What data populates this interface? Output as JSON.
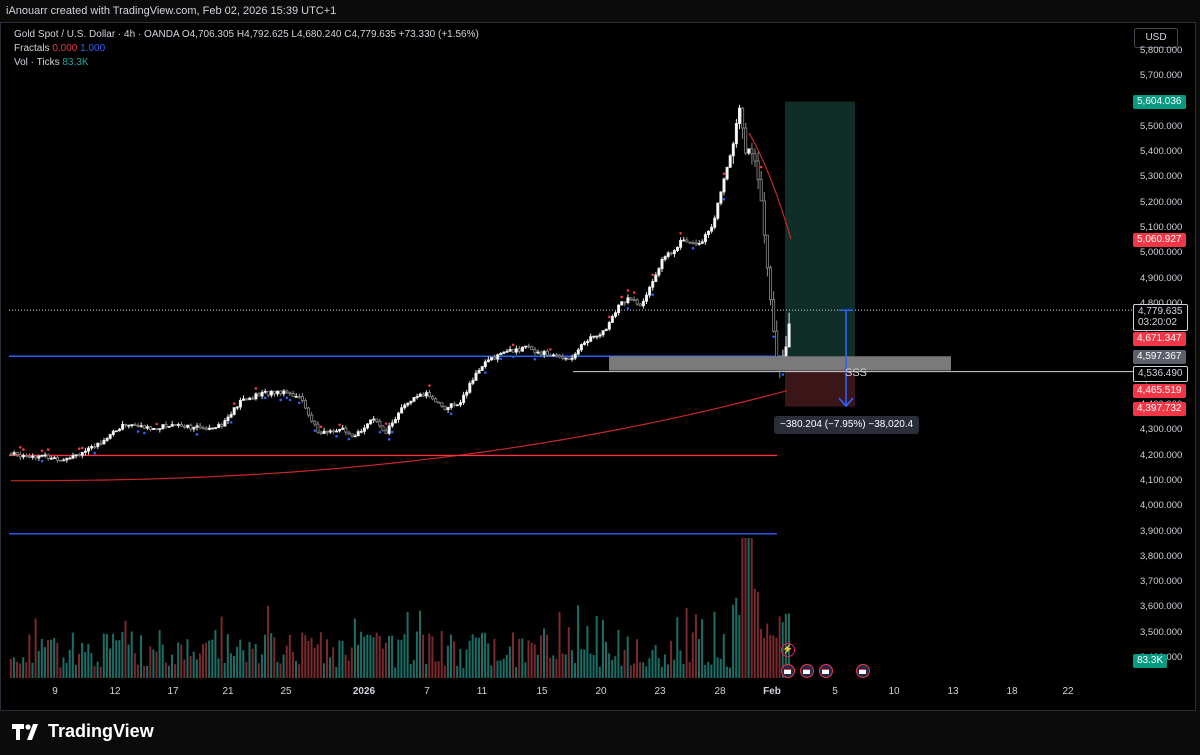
{
  "header": {
    "credit": "iAnouarr created with TradingView.com, Feb 02, 2026 15:39 UTC+1"
  },
  "legend": {
    "symbol": "Gold Spot / U.S. Dollar · 4h · OANDA",
    "open_label": "O",
    "open": "4,706.305",
    "high_label": "H",
    "high": "4,792.625",
    "low_label": "L",
    "low": "4,680.240",
    "close_label": "C",
    "close": "4,779.635",
    "change": "+73.330 (+1.56%)",
    "fractals_label": "Fractals",
    "fractals_a": "0.000",
    "fractals_b": "1.000",
    "vol_label": "Vol · Ticks",
    "vol_value": "83.3K"
  },
  "currency": "USD",
  "price_axis": [
    "5,800.000",
    "5,700.000",
    "5,600.000",
    "5,500.000",
    "5,400.000",
    "5,300.000",
    "5,200.000",
    "5,100.000",
    "5,000.000",
    "4,900.000",
    "4,800.000",
    "4,700.000",
    "4,600.000",
    "4,500.000",
    "4,400.000",
    "4,300.000",
    "4,200.000",
    "4,100.000",
    "4,000.000",
    "3,900.000",
    "3,800.000",
    "3,700.000",
    "3,600.000",
    "3,500.000",
    "3,400.000"
  ],
  "price_labels": {
    "target": "5,604.036",
    "ma_fast": "5,060.927",
    "current": "4,779.635",
    "countdown": "03:20:02",
    "level_a": "4,671.347",
    "level_b": "4,597.367",
    "level_c": "4,536.490",
    "level_d": "4,465.519",
    "level_e": "4,397.732",
    "volume": "83.3K"
  },
  "time_axis": [
    "9",
    "12",
    "17",
    "21",
    "25",
    "2026",
    "7",
    "11",
    "15",
    "20",
    "23",
    "28",
    "Feb",
    "5",
    "10",
    "13",
    "18",
    "22"
  ],
  "measure_text": "−380.204 (−7.95%) −38,020.4",
  "sss_label": "SSS",
  "footer": {
    "brand": "TradingView"
  },
  "colors": {
    "up": "#26a69a",
    "down": "#ef5350",
    "accent_blue": "#2962ff",
    "red": "#f23645",
    "tp_zone": "#1b3b33",
    "sl_zone": "#4a1f22"
  },
  "chart_data": {
    "type": "candlestick",
    "symbol": "Gold Spot / U.S. Dollar",
    "interval": "4h",
    "ylim": [
      3400,
      5800
    ],
    "last": {
      "open": 4706.305,
      "high": 4792.625,
      "low": 4680.24,
      "close": 4779.635
    },
    "horizontal_lines": [
      {
        "price": 4597,
        "color": "#2962ff"
      },
      {
        "price": 4205,
        "color": "#f23645"
      },
      {
        "price": 3895,
        "color": "#2962ff"
      },
      {
        "price": 4536.49,
        "color": "#d1d4dc"
      }
    ],
    "position": {
      "entry": 4597.367,
      "target": 5604.036,
      "stop": 4397.732
    }
  }
}
